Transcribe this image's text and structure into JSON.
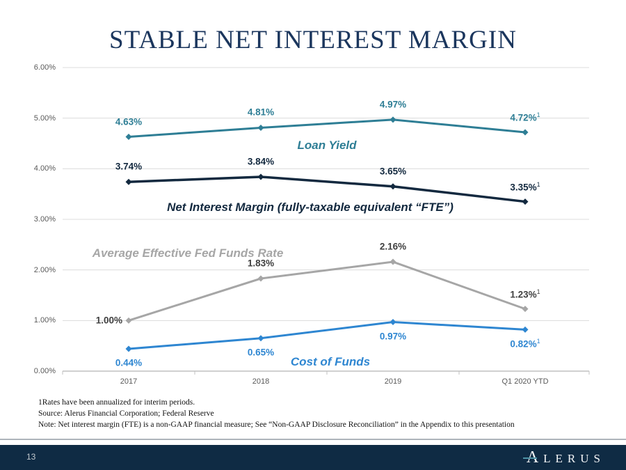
{
  "slide": {
    "title": "STABLE NET INTEREST MARGIN"
  },
  "chart_data": {
    "type": "line",
    "title": "Stable Net Interest Margin",
    "categories": [
      "2017",
      "2018",
      "2019",
      "Q1 2020 YTD"
    ],
    "y_ticks": [
      "6.00%",
      "5.00%",
      "4.00%",
      "3.00%",
      "2.00%",
      "1.00%",
      "0.00%"
    ],
    "ylim": [
      0,
      6
    ],
    "grid": "horizontal",
    "legend_position": "inline-annotations",
    "superscript_last_point": "1",
    "series": [
      {
        "name": "Loan Yield",
        "values": [
          4.63,
          4.81,
          4.97,
          4.72
        ],
        "labels": [
          "4.63%",
          "4.81%",
          "4.97%",
          "4.72%"
        ],
        "color": "#2E7E95",
        "label_color": "#2E7E95",
        "label_placement": "above"
      },
      {
        "name": "Net Interest Margin (fully-taxable equivalent “FTE”)",
        "values": [
          3.74,
          3.84,
          3.65,
          3.35
        ],
        "labels": [
          "3.74%",
          "3.84%",
          "3.65%",
          "3.35%"
        ],
        "color": "#13293F",
        "label_color": "#13293F",
        "label_placement": "above"
      },
      {
        "name": "Average Effective Fed Funds Rate",
        "values": [
          1.0,
          1.83,
          2.16,
          1.23
        ],
        "labels": [
          "1.00%",
          "1.83%",
          "2.16%",
          "1.23%"
        ],
        "color": "#A6A6A6",
        "label_color": "#404040",
        "label_placement": "above",
        "label_overrides": {
          "0": "left"
        }
      },
      {
        "name": "Cost of Funds",
        "values": [
          0.44,
          0.65,
          0.97,
          0.82
        ],
        "labels": [
          "0.44%",
          "0.65%",
          "0.97%",
          "0.82%"
        ],
        "color": "#2E86D1",
        "label_color": "#2E86D1",
        "label_placement": "below"
      }
    ]
  },
  "footnotes": [
    "1Rates have been annualized for interim periods.",
    "Source: Alerus Financial Corporation; Federal Reserve",
    "Note: Net interest margin (FTE) is a non-GAAP financial measure; See “Non-GAAP Disclosure Reconciliation” in the Appendix to this presentation"
  ],
  "footer": {
    "page_number": "13",
    "brand_initial": "A",
    "brand_rest": "LERUS"
  },
  "colors": {
    "title_text": "#1B365D",
    "loan_yield": "#2E7E95",
    "net_interest_margin": "#13293F",
    "fed_funds_line": "#A6A6A6",
    "fed_funds_label": "#404040",
    "cost_of_funds": "#2E86D1",
    "gridline": "#DCDCDC",
    "axis_line": "#C0C0C0",
    "tick_text": "#595959",
    "footer_bar": "#0F2B44",
    "brand_accent": "#4E93A6"
  }
}
